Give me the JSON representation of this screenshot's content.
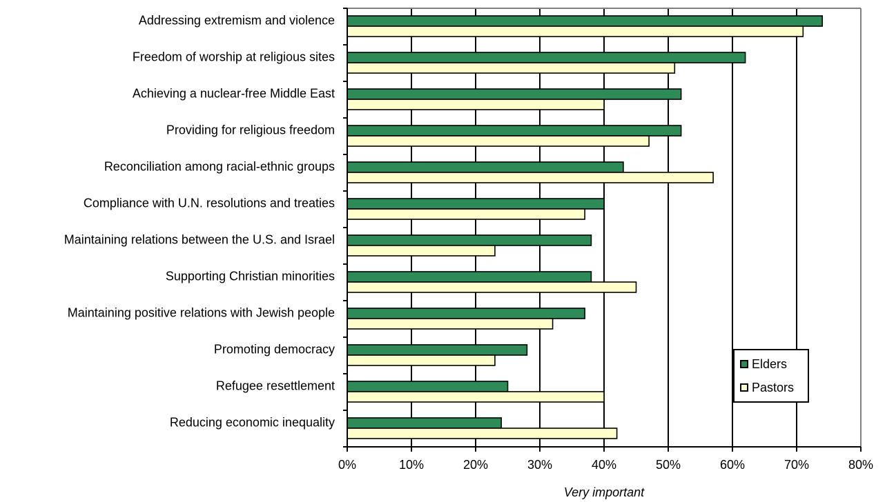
{
  "chart_data": {
    "type": "bar",
    "orientation": "horizontal",
    "categories": [
      "Addressing extremism and violence",
      "Freedom of worship at religious sites",
      "Achieving a nuclear-free Middle East",
      "Providing for religious freedom",
      "Reconciliation among racial-ethnic groups",
      "Compliance with U.N. resolutions and treaties",
      "Maintaining relations between the U.S. and Israel",
      "Supporting Christian minorities",
      "Maintaining positive relations with Jewish people",
      "Promoting democracy",
      "Refugee resettlement",
      "Reducing economic inequality"
    ],
    "series": [
      {
        "name": "Elders",
        "color": "#2e8b57",
        "values": [
          74,
          62,
          52,
          52,
          43,
          40,
          38,
          38,
          37,
          28,
          25,
          24
        ]
      },
      {
        "name": "Pastors",
        "color": "#ffffcc",
        "values": [
          71,
          51,
          40,
          47,
          57,
          37,
          23,
          45,
          32,
          23,
          40,
          42
        ]
      }
    ],
    "xlabel": "Very important",
    "xlim": [
      0,
      80
    ],
    "xticks": [
      "0%",
      "10%",
      "20%",
      "30%",
      "40%",
      "50%",
      "60%",
      "70%",
      "80%"
    ],
    "grid": "vertical major gridlines",
    "legend_position": "right, lower"
  }
}
